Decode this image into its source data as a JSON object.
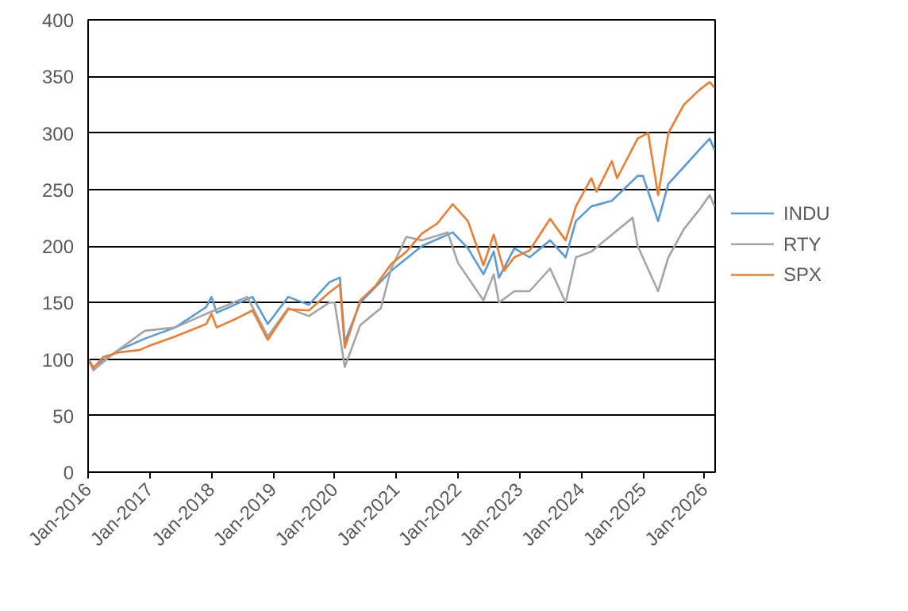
{
  "chart_data": {
    "type": "line",
    "xlim": [
      "2016-01-01",
      "2026-03-05"
    ],
    "xticks": [
      {
        "value": "2016-01-01",
        "label": "Jan-2016"
      },
      {
        "value": "2017-01-01",
        "label": "Jan-2017"
      },
      {
        "value": "2018-01-01",
        "label": "Jan-2018"
      },
      {
        "value": "2019-01-01",
        "label": "Jan-2019"
      },
      {
        "value": "2020-01-01",
        "label": "Jan-2020"
      },
      {
        "value": "2021-01-01",
        "label": "Jan-2021"
      },
      {
        "value": "2022-01-01",
        "label": "Jan-2022"
      },
      {
        "value": "2023-01-01",
        "label": "Jan-2023"
      },
      {
        "value": "2024-01-01",
        "label": "Jan-2024"
      },
      {
        "value": "2025-01-01",
        "label": "Jan-2025"
      },
      {
        "value": "2026-01-01",
        "label": "Jan-2026"
      }
    ],
    "ylim": [
      0,
      400
    ],
    "yticks": [
      0,
      50,
      100,
      150,
      200,
      250,
      300,
      350,
      400
    ],
    "grid": "y",
    "legend": "right",
    "marker": "none",
    "line_style": "solid",
    "series": [
      {
        "name": "INDU",
        "color": "#5b9bd5",
        "x": [
          "2016-01",
          "2016-02",
          "2016-07",
          "2016-12",
          "2017-06",
          "2017-12",
          "2018-01",
          "2018-02",
          "2018-09",
          "2018-12",
          "2019-04",
          "2019-08",
          "2019-12",
          "2020-02",
          "2020-03",
          "2020-06",
          "2020-12",
          "2021-06",
          "2021-12",
          "2022-03",
          "2022-06",
          "2022-08",
          "2022-09",
          "2022-12",
          "2023-03",
          "2023-07",
          "2023-10",
          "2023-12",
          "2024-03",
          "2024-07",
          "2024-12",
          "2025-01",
          "2025-04",
          "2025-06",
          "2025-09",
          "2025-12",
          "2026-02",
          "2026-03"
        ],
        "values": [
          100,
          93,
          108,
          118,
          128,
          146,
          155,
          141,
          155,
          131,
          155,
          148,
          168,
          172,
          115,
          150,
          178,
          200,
          212,
          198,
          175,
          195,
          172,
          198,
          190,
          205,
          190,
          222,
          235,
          240,
          262,
          262,
          222,
          255,
          270,
          285,
          295,
          285
        ]
      },
      {
        "name": "RTY",
        "color": "#a5a5a5",
        "x": [
          "2016-01",
          "2016-02",
          "2016-06",
          "2016-12",
          "2017-06",
          "2017-12",
          "2018-08",
          "2018-12",
          "2019-04",
          "2019-08",
          "2019-12",
          "2020-01",
          "2020-03",
          "2020-06",
          "2020-10",
          "2020-12",
          "2021-03",
          "2021-06",
          "2021-11",
          "2022-01",
          "2022-06",
          "2022-08",
          "2022-09",
          "2022-12",
          "2023-03",
          "2023-07",
          "2023-10",
          "2023-12",
          "2024-03",
          "2024-07",
          "2024-11",
          "2024-12",
          "2025-04",
          "2025-06",
          "2025-09",
          "2025-12",
          "2026-02",
          "2026-03"
        ],
        "values": [
          100,
          90,
          105,
          125,
          128,
          140,
          155,
          120,
          145,
          138,
          150,
          150,
          93,
          130,
          145,
          180,
          208,
          205,
          212,
          185,
          152,
          175,
          150,
          160,
          160,
          180,
          150,
          190,
          195,
          210,
          225,
          200,
          160,
          190,
          215,
          232,
          245,
          235
        ]
      },
      {
        "name": "SPX",
        "color": "#ed7d31",
        "x": [
          "2016-01",
          "2016-02",
          "2016-04",
          "2016-07",
          "2016-11",
          "2017-01",
          "2017-06",
          "2017-12",
          "2018-01",
          "2018-02",
          "2018-06",
          "2018-09",
          "2018-12",
          "2019-04",
          "2019-08",
          "2019-12",
          "2020-02",
          "2020-03",
          "2020-06",
          "2020-09",
          "2020-12",
          "2021-03",
          "2021-06",
          "2021-09",
          "2021-12",
          "2022-03",
          "2022-06",
          "2022-08",
          "2022-10",
          "2022-12",
          "2023-03",
          "2023-07",
          "2023-10",
          "2023-12",
          "2024-03",
          "2024-04",
          "2024-07",
          "2024-08",
          "2024-12",
          "2025-02",
          "2025-04",
          "2025-06",
          "2025-09",
          "2025-12",
          "2026-02",
          "2026-03"
        ],
        "values": [
          100,
          92,
          102,
          106,
          108,
          112,
          120,
          131,
          140,
          128,
          136,
          143,
          117,
          144,
          143,
          159,
          166,
          110,
          152,
          165,
          184,
          195,
          211,
          220,
          237,
          222,
          183,
          210,
          178,
          190,
          196,
          224,
          205,
          235,
          260,
          248,
          275,
          260,
          295,
          300,
          245,
          300,
          325,
          338,
          345,
          340
        ]
      }
    ]
  }
}
